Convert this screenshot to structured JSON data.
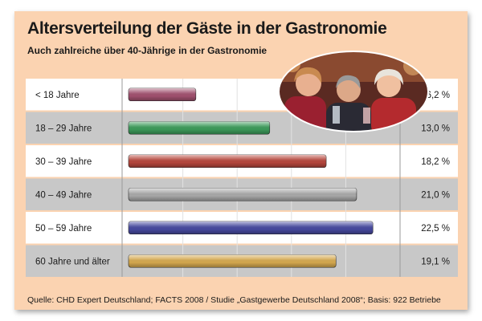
{
  "title": "Altersverteilung der Gäste in der Gastronomie",
  "subtitle": "Auch zahlreiche über 40-Jährige in der Gastronomie",
  "source": "Quelle: CHD Expert Deutschland; FACTS 2008 / Studie „Gastgewerbe Deutschland 2008“; Basis: 922 Betriebe",
  "colors": {
    "background": "#fbd3b1",
    "row_white": "#ffffff",
    "row_gray": "#c8c8c8",
    "bars": [
      "#a0506e",
      "#3c9a5a",
      "#b5463c",
      "#a8a8a8",
      "#46499e",
      "#d4a84e"
    ]
  },
  "chart_data": {
    "type": "bar",
    "orientation": "horizontal",
    "categories": [
      "< 18 Jahre",
      "18 – 29 Jahre",
      "30 – 39 Jahre",
      "40 – 49 Jahre",
      "50 – 59 Jahre",
      "60 Jahre und älter"
    ],
    "values": [
      6.2,
      13.0,
      18.2,
      21.0,
      22.5,
      19.1
    ],
    "value_labels": [
      "6,2 %",
      "13,0 %",
      "18,2 %",
      "21,0 %",
      "22,5 %",
      "19,1 %"
    ],
    "unit": "%",
    "xlim": [
      0,
      25
    ],
    "grid": true
  }
}
